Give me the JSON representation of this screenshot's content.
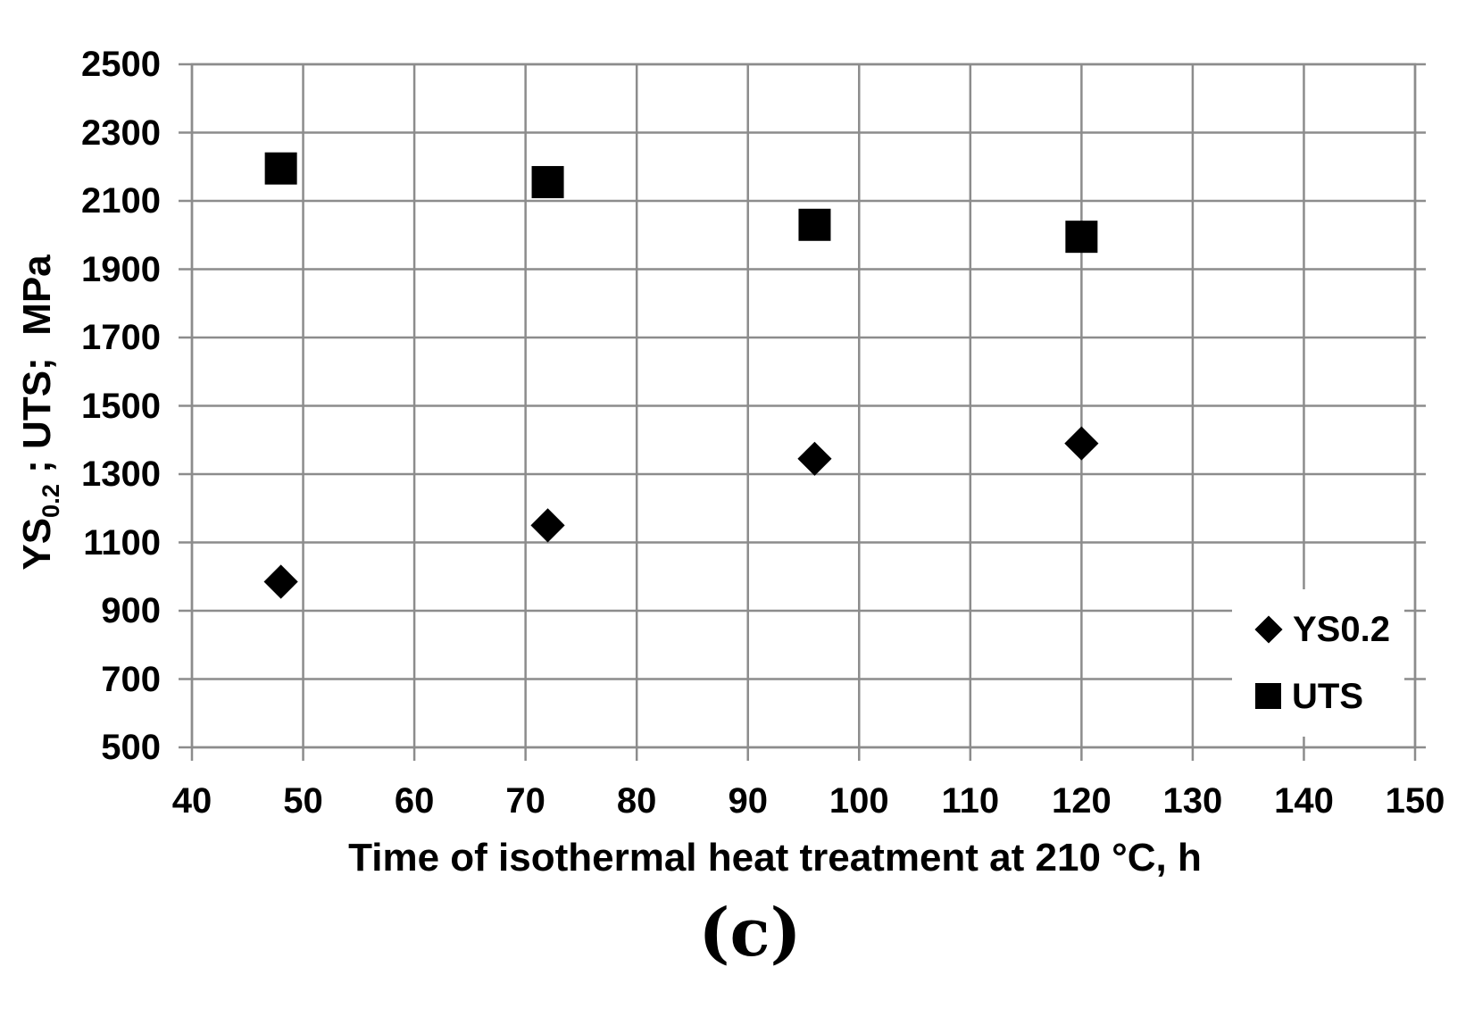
{
  "figure": {
    "caption": "(c)"
  },
  "colors": {
    "background": "#ffffff",
    "grid": "#8c8c8c",
    "marker": "#000000",
    "text": "#000000"
  },
  "chart_data": {
    "type": "scatter",
    "title": "",
    "xlabel": "Time of isothermal heat treatment at 210 °C, h",
    "ylabel": "YS0.2 ; UTS;  MPa",
    "ylabel_prefix": "YS",
    "ylabel_subscript": "0.2",
    "ylabel_suffix": " ; UTS;  MPa",
    "xlim": [
      40,
      150
    ],
    "ylim": [
      500,
      2500
    ],
    "x_ticks": [
      40,
      50,
      60,
      70,
      80,
      90,
      100,
      110,
      120,
      130,
      140,
      150
    ],
    "y_ticks": [
      500,
      700,
      900,
      1100,
      1300,
      1500,
      1700,
      1900,
      2100,
      2300,
      2500
    ],
    "grid": true,
    "legend": {
      "position": "inside-bottom-right",
      "entries": [
        {
          "label": "YS0.2",
          "marker": "diamond"
        },
        {
          "label": "UTS",
          "marker": "square"
        }
      ]
    },
    "series": [
      {
        "name": "YS0.2",
        "marker": "diamond",
        "color": "#000000",
        "points": [
          [
            48,
            985
          ],
          [
            72,
            1150
          ],
          [
            96,
            1345
          ],
          [
            120,
            1390
          ]
        ]
      },
      {
        "name": "UTS",
        "marker": "square",
        "color": "#000000",
        "points": [
          [
            48,
            2195
          ],
          [
            72,
            2155
          ],
          [
            96,
            2030
          ],
          [
            120,
            1995
          ]
        ]
      }
    ]
  }
}
